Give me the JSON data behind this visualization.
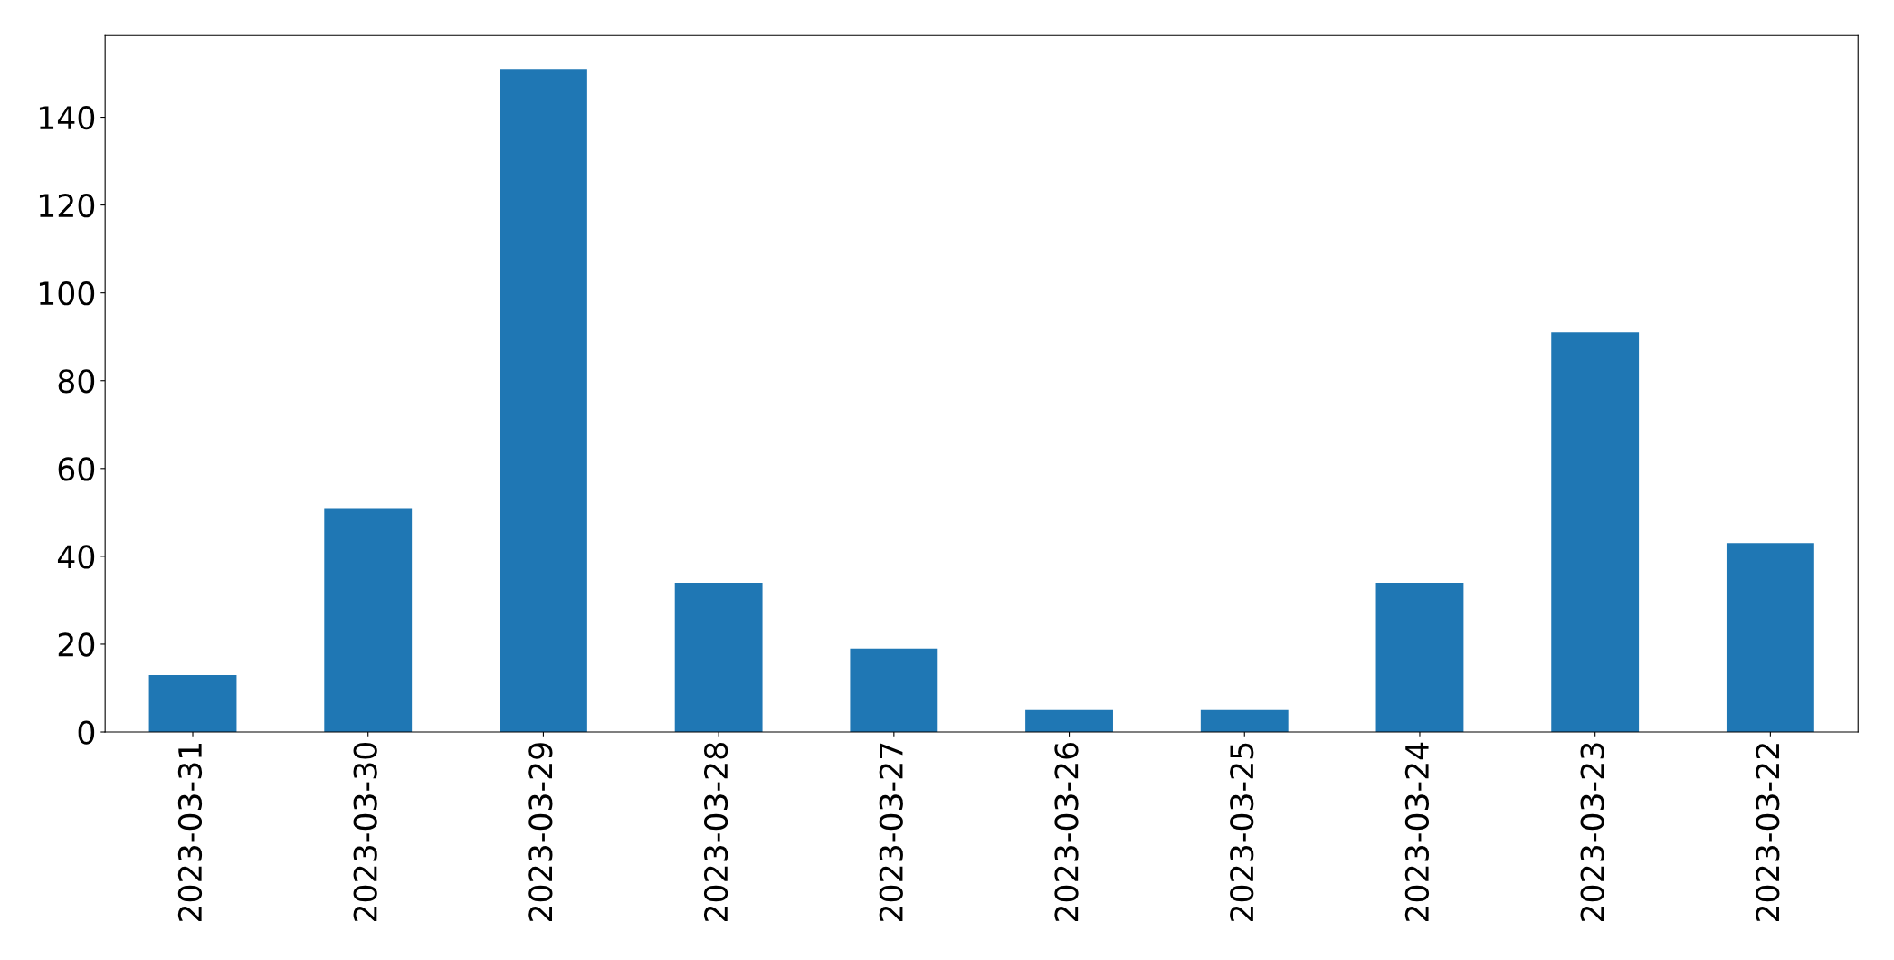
{
  "chart_data": {
    "type": "bar",
    "categories": [
      "2023-03-31",
      "2023-03-30",
      "2023-03-29",
      "2023-03-28",
      "2023-03-27",
      "2023-03-26",
      "2023-03-25",
      "2023-03-24",
      "2023-03-23",
      "2023-03-22"
    ],
    "values": [
      13,
      51,
      151,
      34,
      19,
      5,
      5,
      34,
      91,
      43
    ],
    "color": "#1f77b4",
    "ylim": [
      0,
      158.6
    ],
    "yticks": [
      0,
      20,
      40,
      60,
      80,
      100,
      120,
      140
    ],
    "grid": false
  }
}
